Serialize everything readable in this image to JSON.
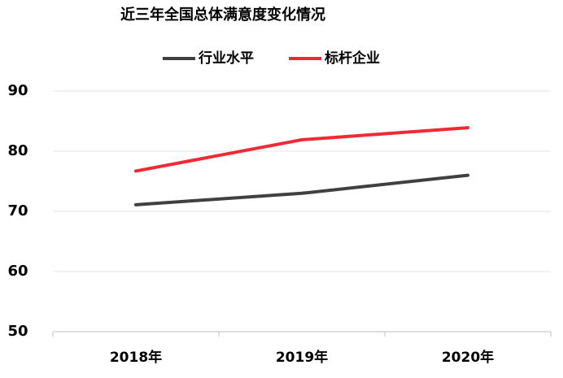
{
  "chart_data": {
    "type": "line",
    "title": "近三年全国总体满意度变化情况",
    "categories": [
      "2018年",
      "2019年",
      "2020年"
    ],
    "series": [
      {
        "name": "行业水平",
        "color": "#404040",
        "values": [
          71.1,
          73,
          76
        ]
      },
      {
        "name": "标杆企业",
        "color": "#ee2b34",
        "values": [
          76.7,
          81.9,
          83.9
        ]
      }
    ],
    "ylim": [
      50,
      90
    ],
    "yticks": [
      50,
      60,
      70,
      80,
      90
    ],
    "grid": true,
    "legend": "top"
  }
}
